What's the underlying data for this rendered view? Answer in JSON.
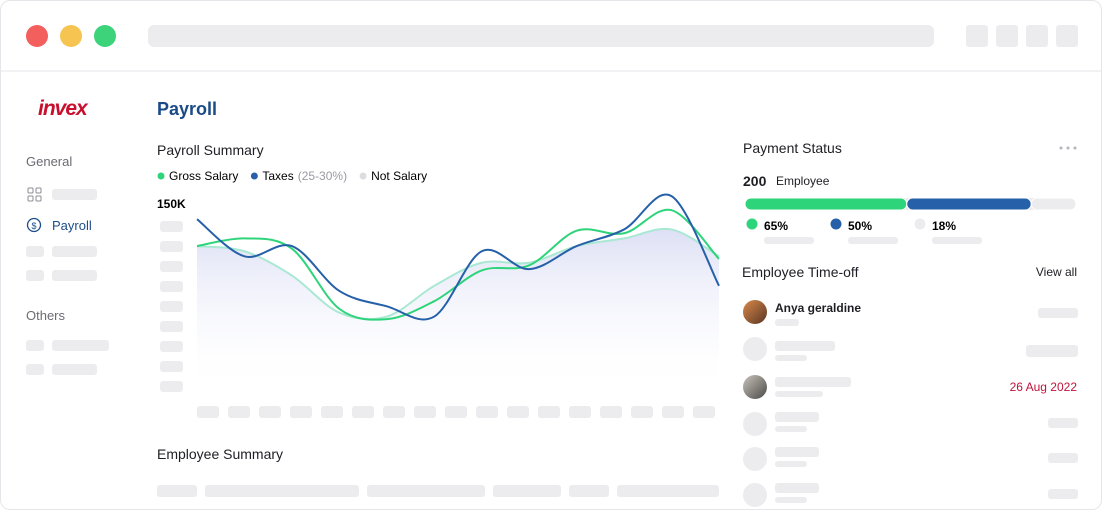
{
  "logo": "invex",
  "sidebar": {
    "sections": [
      {
        "title": "General",
        "items": [
          "Payroll"
        ]
      },
      {
        "title": "Others"
      }
    ]
  },
  "page_title": "Payroll",
  "payroll_summary": {
    "type": "line",
    "title": "Payroll Summary",
    "series": [
      {
        "name": "Gross Salary",
        "color": "#2ed47a",
        "values": [
          117000,
          123000,
          115000,
          68000,
          60000,
          74000,
          98000,
          102000,
          129000,
          127000,
          145000,
          107000
        ]
      },
      {
        "name": "Taxes",
        "detail": "(25-30%)",
        "color": "#2660a8",
        "values": [
          138000,
          109000,
          117000,
          82000,
          70000,
          62000,
          113000,
          99000,
          117000,
          130000,
          156000,
          86000
        ]
      },
      {
        "name": "Not Salary",
        "color": "#dcdde0",
        "line_color": "#a9e8d3",
        "values": [
          117000,
          113000,
          94000,
          65000,
          62000,
          86000,
          104000,
          104000,
          117000,
          123000,
          130000,
          109000
        ]
      }
    ],
    "ylim": [
      0,
      160000
    ],
    "yticks": [
      {
        "value": 150000,
        "label": "150K"
      }
    ]
  },
  "payment_status": {
    "title": "Payment Status",
    "count": 200,
    "count_label": "Employee",
    "values": [
      65,
      50,
      18
    ],
    "value_labels": [
      "65%",
      "50%",
      "18%"
    ],
    "colors": [
      "#2ed47a",
      "#2660a8",
      "#ececef"
    ]
  },
  "time_off": {
    "title": "Employee Time-off",
    "action": "View all",
    "entries": [
      {
        "name": "Anya geraldine"
      },
      {
        "date": "26 Aug 2022"
      }
    ]
  },
  "employee_summary": {
    "title": "Employee Summary"
  }
}
